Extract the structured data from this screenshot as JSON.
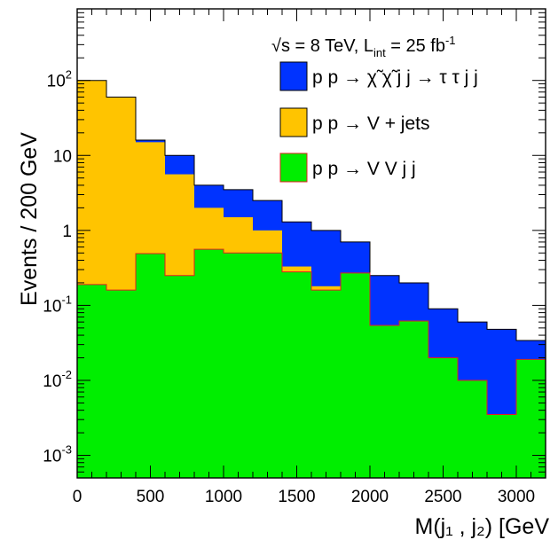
{
  "chart_data": {
    "type": "area",
    "histtype": "stacked-step",
    "title": "",
    "xlabel": "M(j₁ , j₂) [GeV",
    "ylabel": "Events / 200 GeV",
    "xlim": [
      0,
      3200
    ],
    "ylim": [
      0.0005,
      900
    ],
    "yscale": "log",
    "grid": false,
    "legend_position": "top-right",
    "annotation": {
      "sqrt_s": "√s = 8 TeV, L",
      "sub": "int",
      "rest": " = 25 fb",
      "sup": "-1"
    },
    "bin_edges": [
      0,
      200,
      400,
      600,
      800,
      1000,
      1200,
      1400,
      1600,
      1800,
      2000,
      2200,
      2400,
      2600,
      2800,
      3000,
      3200
    ],
    "x_ticks": [
      0,
      500,
      1000,
      1500,
      2000,
      2500,
      3000
    ],
    "x_tick_labels": [
      "0",
      "500",
      "1000",
      "1500",
      "2000",
      "2500",
      "3000"
    ],
    "y_ticks": [
      0.001,
      0.01,
      0.1,
      1,
      10,
      100
    ],
    "y_tick_labels": [
      {
        "base": "10",
        "sup": "-3"
      },
      {
        "base": "10",
        "sup": "-2"
      },
      {
        "base": "10",
        "sup": "-1"
      },
      {
        "base": "1",
        "sup": ""
      },
      {
        "base": "10",
        "sup": ""
      },
      {
        "base": "10",
        "sup": "2"
      }
    ],
    "series": [
      {
        "name": "p p → χ̃ χ̃ j j → τ τ j j",
        "color": "#0033ff",
        "stack_totals": [
          100,
          60,
          16,
          10,
          4.0,
          3.5,
          2.5,
          1.3,
          1.0,
          0.7,
          0.25,
          0.2,
          0.09,
          0.06,
          0.048,
          0.034
        ]
      },
      {
        "name": "p p → V + jets",
        "color": "#ffc400",
        "stack_totals": [
          100,
          60,
          15,
          5.6,
          2.0,
          1.5,
          1.0,
          0.33,
          0.18,
          0.27,
          0.054,
          0.062,
          0.02,
          0.01,
          0.0035,
          0.019
        ]
      },
      {
        "name": "p p → V V j j",
        "color": "#00ee00",
        "stack_totals": [
          0.19,
          0.16,
          0.49,
          0.25,
          0.56,
          0.5,
          0.5,
          0.28,
          0.16,
          0.27,
          0.054,
          0.062,
          0.02,
          0.01,
          0.0035,
          0.019
        ]
      }
    ]
  }
}
